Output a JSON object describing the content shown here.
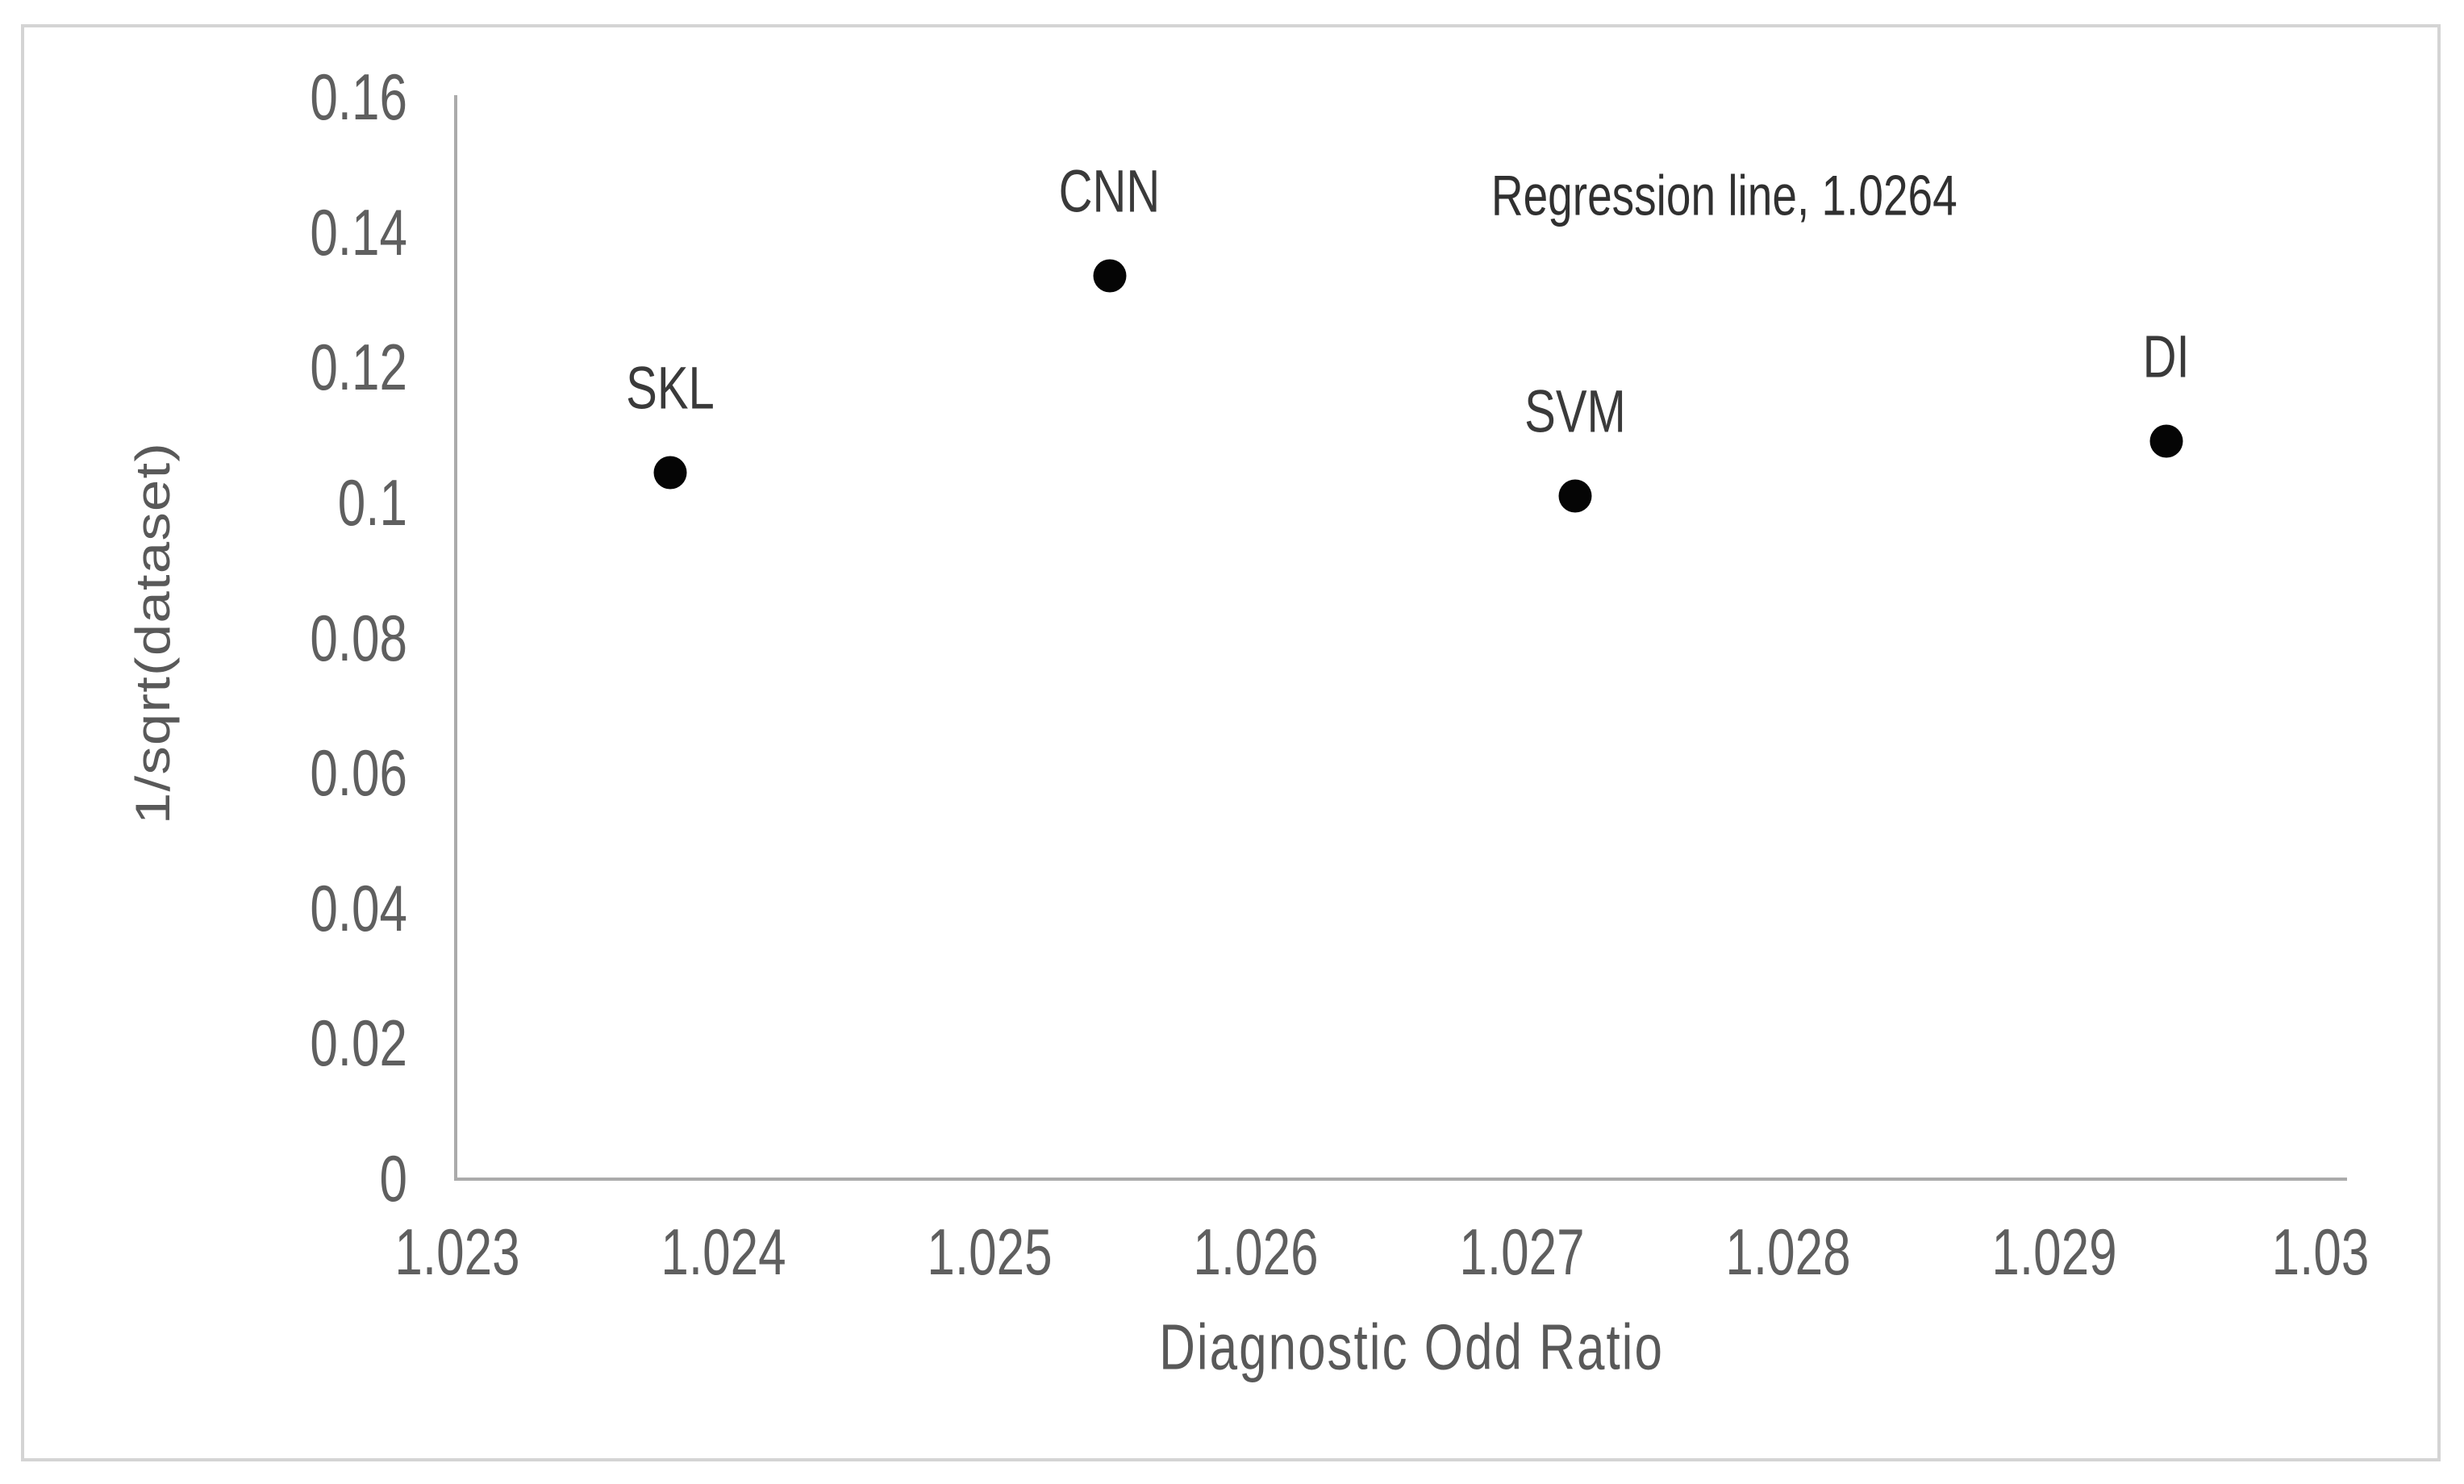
{
  "figure": {
    "background": "#ffffff",
    "border_color": "#d4d4d4"
  },
  "chart_data": {
    "type": "scatter",
    "title": "",
    "xlabel": "Diagnostic Odd Ratio",
    "ylabel": "1/sqrt(dataset)",
    "xlim": [
      1.023,
      1.03
    ],
    "ylim": [
      0,
      0.16
    ],
    "grid": false,
    "legend": false,
    "x_ticks": [
      {
        "label": "1.023",
        "value": 1.023
      },
      {
        "label": "1.024",
        "value": 1.024
      },
      {
        "label": "1.025",
        "value": 1.025
      },
      {
        "label": "1.026",
        "value": 1.026
      },
      {
        "label": "1.027",
        "value": 1.027
      },
      {
        "label": "1.028",
        "value": 1.028
      },
      {
        "label": "1.029",
        "value": 1.029
      },
      {
        "label": "1.03",
        "value": 1.03
      }
    ],
    "y_ticks": [
      {
        "label": "0",
        "value": 0
      },
      {
        "label": "0.02",
        "value": 0.02
      },
      {
        "label": "0.04",
        "value": 0.04
      },
      {
        "label": "0.06",
        "value": 0.06
      },
      {
        "label": "0.08",
        "value": 0.08
      },
      {
        "label": "0.1",
        "value": 0.1
      },
      {
        "label": "0.12",
        "value": 0.12
      },
      {
        "label": "0.14",
        "value": 0.14
      },
      {
        "label": "0.16",
        "value": 0.16
      }
    ],
    "points": [
      {
        "label": "SKL",
        "x": 1.0238,
        "y": 0.1046
      },
      {
        "label": "CNN",
        "x": 1.02545,
        "y": 0.1337
      },
      {
        "label": "SVM",
        "x": 1.0272,
        "y": 0.1012
      },
      {
        "label": "DI",
        "x": 1.02942,
        "y": 0.1093
      }
    ],
    "annotation": {
      "text": "Regression line, 1.0264",
      "x": 1.02776,
      "y": 0.1456
    },
    "colors": {
      "marker": "#050505",
      "tick_label": "#5f5f5f",
      "axis_title": "#595959",
      "point_label": "#3a3a3a",
      "axis_line": "#ababab"
    }
  }
}
